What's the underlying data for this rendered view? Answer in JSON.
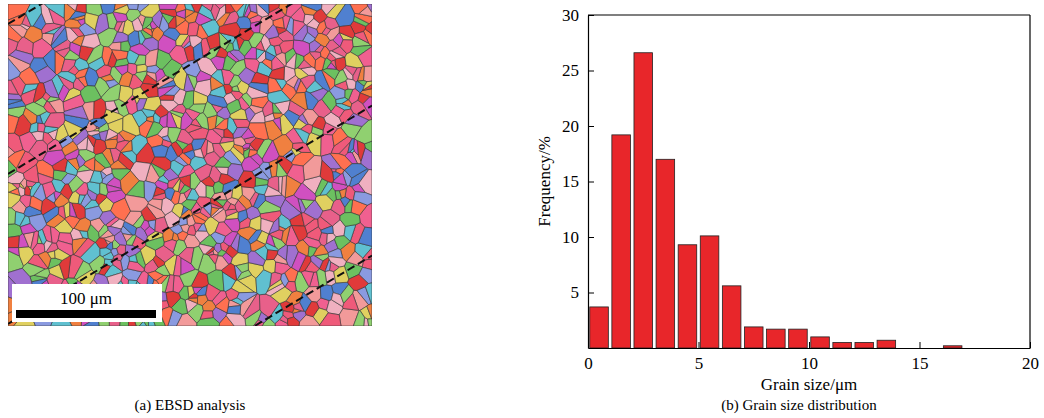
{
  "chart_data": [
    {
      "type": "image",
      "caption": "(a) EBSD analysis",
      "scale_bar": "100 μm"
    },
    {
      "type": "histogram",
      "caption": "(b) Grain size distribution",
      "x_label": "Grain size/μm",
      "y_label": "Frequency/%",
      "bins": [
        0,
        1,
        2,
        3,
        4,
        5,
        6,
        7,
        8,
        9,
        10,
        11,
        12,
        13,
        14,
        15,
        16,
        17,
        18,
        19,
        20
      ],
      "counts": [
        3.7,
        19.2,
        26.6,
        17.0,
        9.3,
        10.1,
        5.6,
        1.9,
        1.7,
        1.7,
        1.0,
        0.5,
        0.5,
        0.7,
        0,
        0,
        0.2,
        0,
        0,
        0
      ],
      "color": "#e8262a",
      "xlim": [
        0,
        20
      ],
      "ylim": [
        0,
        30
      ],
      "xticks": [
        0,
        5,
        10,
        15,
        20
      ],
      "yticks": [
        5,
        10,
        15,
        20,
        25,
        30
      ]
    }
  ]
}
